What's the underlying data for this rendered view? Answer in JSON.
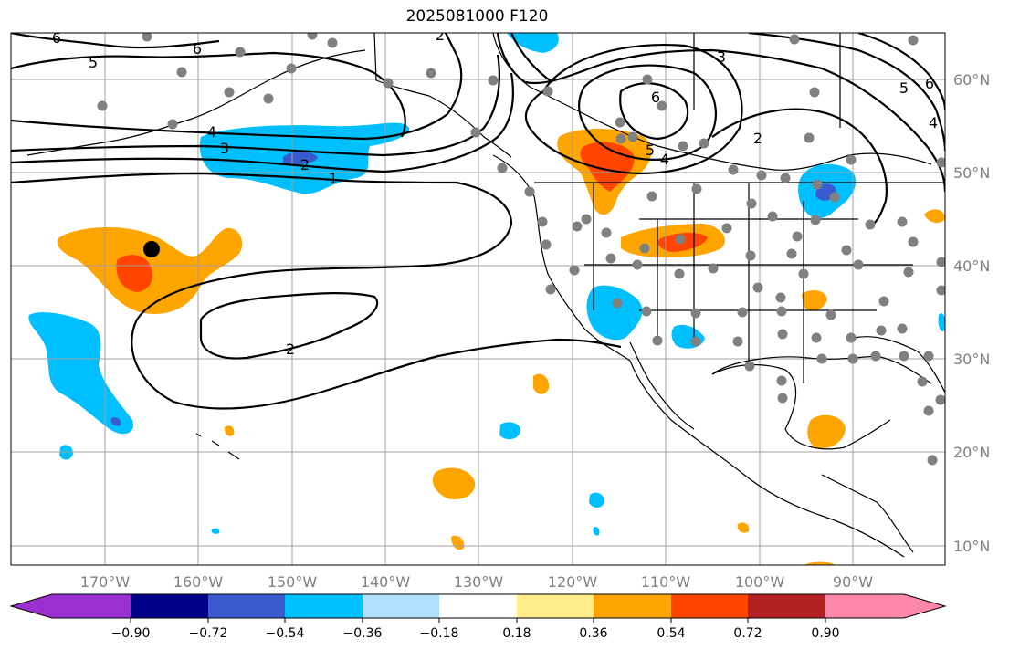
{
  "title": "2025081000 F120",
  "lat_labels": [
    "60°N",
    "50°N",
    "40°N",
    "30°N",
    "20°N",
    "10°N"
  ],
  "lon_labels": [
    "170°W",
    "160°W",
    "150°W",
    "140°W",
    "130°W",
    "120°W",
    "110°W",
    "100°W",
    "90°W"
  ],
  "contour_labels": [
    "6",
    "5",
    "6",
    "4",
    "3",
    "2",
    "1",
    "2",
    "2",
    "3",
    "6",
    "5",
    "4",
    "5",
    "6",
    "4",
    "2"
  ],
  "colorbar": {
    "ticks": [
      "−0.90",
      "−0.72",
      "−0.54",
      "−0.36",
      "−0.18",
      "0.18",
      "0.36",
      "0.54",
      "0.72",
      "0.90"
    ],
    "colors": [
      "#9b30d0",
      "#00008b",
      "#3a5bd0",
      "#00bfff",
      "#b0e2ff",
      "#ffffff",
      "#ffec8b",
      "#ffa500",
      "#ff4500",
      "#b22222",
      "#ff88aa"
    ]
  },
  "colors": {
    "contour": "#000000",
    "grid": "#a0a0a0",
    "station": "#808080",
    "marker": "#000000"
  }
}
